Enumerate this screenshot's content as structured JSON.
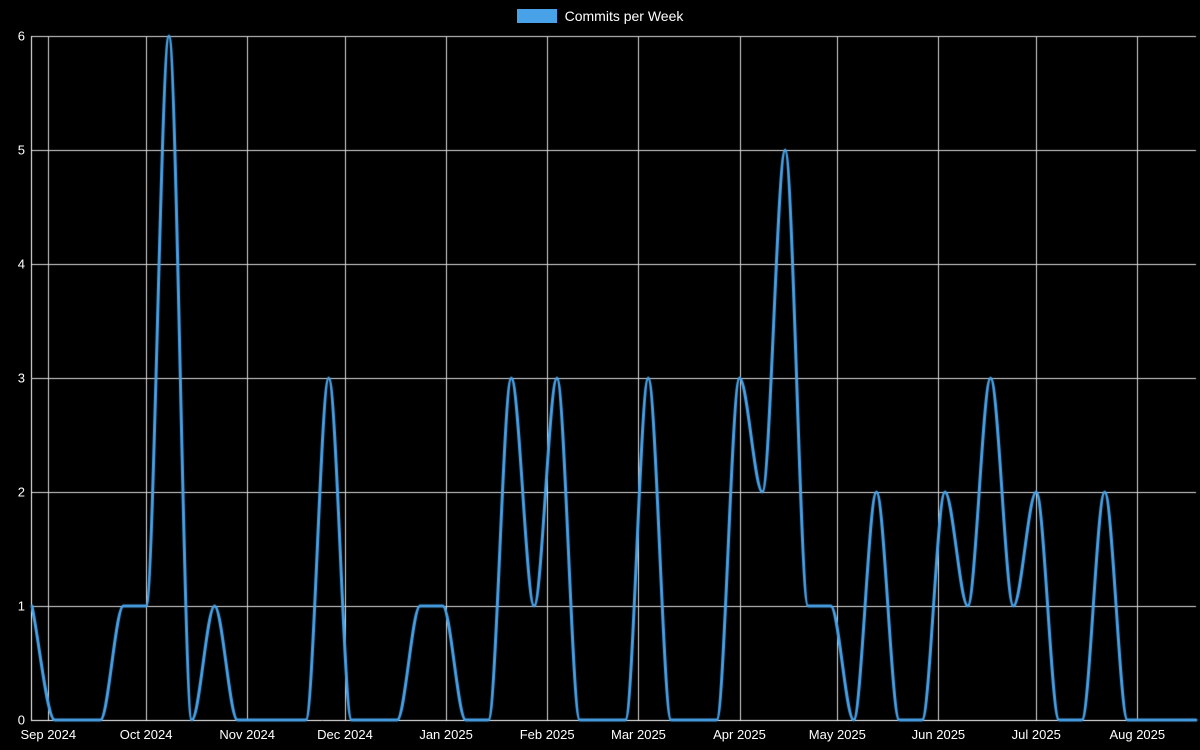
{
  "chart_data": {
    "type": "line",
    "title": "",
    "legend_position": "top",
    "smoothing": "monotone",
    "grid": true,
    "series": [
      {
        "name": "Commits per Week",
        "color": "#48a2e8",
        "line_width": 3,
        "fill": false,
        "point_interval_days": 7,
        "values": [
          1,
          0,
          0,
          0,
          1,
          1,
          6,
          0,
          1,
          0,
          0,
          0,
          0,
          3,
          0,
          0,
          0,
          1,
          1,
          0,
          0,
          3,
          1,
          3,
          0,
          0,
          0,
          3,
          0,
          0,
          0,
          3,
          2,
          5,
          1,
          1,
          0,
          2,
          0,
          0,
          2,
          1,
          3,
          1,
          2,
          0,
          0,
          2,
          0,
          0,
          0,
          0
        ]
      }
    ],
    "x_axis": {
      "tick_labels": [
        "Sep 2024",
        "Oct 2024",
        "Nov 2024",
        "Dec 2024",
        "Jan 2025",
        "Feb 2025",
        "Mar 2025",
        "Apr 2025",
        "May 2025",
        "Jun 2025",
        "Jul 2025",
        "Aug 2025"
      ],
      "tick_positions_days": [
        5,
        35,
        66,
        96,
        127,
        158,
        186,
        217,
        247,
        278,
        308,
        339
      ],
      "total_days": 357
    },
    "y_axis": {
      "tick_labels": [
        "0",
        "1",
        "2",
        "3",
        "4",
        "5",
        "6"
      ],
      "min": 0,
      "max": 6
    },
    "colors": {
      "background": "#000000",
      "axis": "#ffffff",
      "grid": "#d8d8d8",
      "text": "#ffffff"
    }
  }
}
